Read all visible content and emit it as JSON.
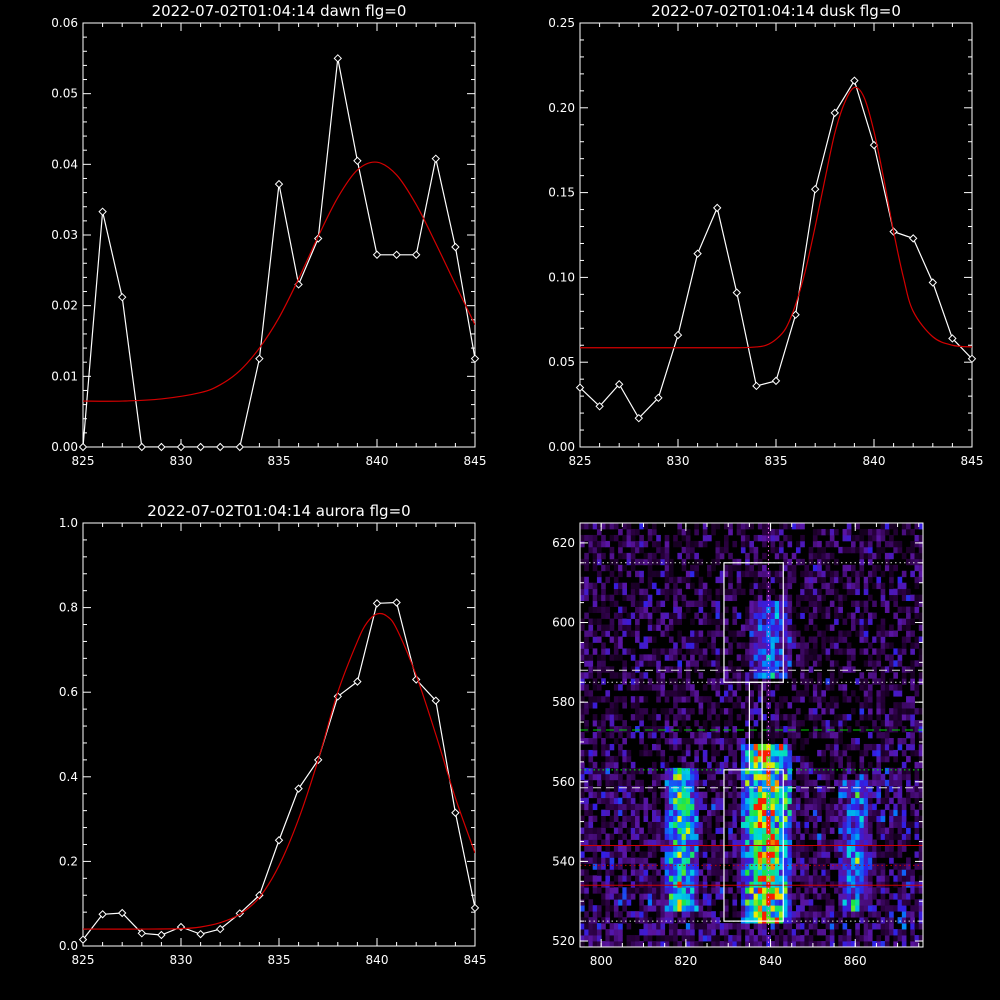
{
  "chart_data": [
    {
      "type": "line",
      "title": "2022-07-02T01:04:14 dawn flg=0",
      "xlim": [
        825,
        845
      ],
      "ylim": [
        0,
        0.06
      ],
      "xticks": [
        "825",
        "830",
        "835",
        "840",
        "845"
      ],
      "yticks": [
        "0.00",
        "0.01",
        "0.02",
        "0.03",
        "0.04",
        "0.05",
        "0.06"
      ],
      "series": [
        {
          "color": "#ffffff",
          "markers": true,
          "x": [
            825,
            826,
            827,
            828,
            829,
            830,
            831,
            832,
            833,
            834,
            835,
            836,
            837,
            838,
            839,
            840,
            841,
            842,
            843,
            844,
            845
          ],
          "y": [
            0.0,
            0.0333,
            0.0212,
            0.0,
            0.0,
            0.0,
            0.0,
            0.0,
            0.0,
            0.0125,
            0.0372,
            0.023,
            0.0295,
            0.055,
            0.0405,
            0.0272,
            0.0272,
            0.0272,
            0.0408,
            0.0283,
            0.0125
          ]
        },
        {
          "color": "#d40000",
          "markers": false,
          "x": [
            825,
            827,
            829,
            831,
            832,
            833,
            834,
            835,
            836,
            837,
            838,
            839,
            840,
            841,
            842,
            843,
            844,
            845
          ],
          "y": [
            0.0065,
            0.0065,
            0.0068,
            0.0077,
            0.0088,
            0.0108,
            0.014,
            0.0183,
            0.0238,
            0.0298,
            0.0353,
            0.0392,
            0.0403,
            0.0385,
            0.0343,
            0.0288,
            0.023,
            0.0173
          ]
        }
      ]
    },
    {
      "type": "line",
      "title": "2022-07-02T01:04:14 dusk flg=0",
      "xlim": [
        825,
        845
      ],
      "ylim": [
        0,
        0.25
      ],
      "xticks": [
        "825",
        "830",
        "835",
        "840",
        "845"
      ],
      "yticks": [
        "0.00",
        "0.05",
        "0.10",
        "0.15",
        "0.20",
        "0.25"
      ],
      "series": [
        {
          "color": "#ffffff",
          "markers": true,
          "x": [
            825,
            826,
            827,
            828,
            829,
            830,
            831,
            832,
            833,
            834,
            835,
            836,
            837,
            838,
            839,
            840,
            841,
            842,
            843,
            844,
            845
          ],
          "y": [
            0.035,
            0.024,
            0.037,
            0.017,
            0.029,
            0.066,
            0.114,
            0.141,
            0.091,
            0.036,
            0.039,
            0.078,
            0.152,
            0.197,
            0.216,
            0.178,
            0.127,
            0.123,
            0.097,
            0.064,
            0.052
          ]
        },
        {
          "color": "#d40000",
          "markers": false,
          "x": [
            825,
            830,
            833,
            834,
            834.5,
            835,
            835.5,
            836,
            836.5,
            837,
            837.5,
            838,
            838.5,
            839,
            839.5,
            840,
            840.5,
            841,
            841.5,
            842,
            843,
            844,
            845
          ],
          "y": [
            0.0585,
            0.0585,
            0.0585,
            0.059,
            0.06,
            0.0635,
            0.07,
            0.084,
            0.104,
            0.13,
            0.158,
            0.185,
            0.203,
            0.212,
            0.206,
            0.186,
            0.158,
            0.127,
            0.1,
            0.08,
            0.065,
            0.06,
            0.059
          ]
        }
      ]
    },
    {
      "type": "line",
      "title": "2022-07-02T01:04:14 aurora flg=0",
      "xlim": [
        825,
        845
      ],
      "ylim": [
        0,
        1.0
      ],
      "xticks": [
        "825",
        "830",
        "835",
        "840",
        "845"
      ],
      "yticks": [
        "0.0",
        "0.2",
        "0.4",
        "0.6",
        "0.8",
        "1.0"
      ],
      "series": [
        {
          "color": "#ffffff",
          "markers": true,
          "x": [
            825,
            826,
            827,
            828,
            829,
            830,
            831,
            832,
            833,
            834,
            835,
            836,
            837,
            838,
            839,
            840,
            841,
            842,
            843,
            844,
            845
          ],
          "y": [
            0.015,
            0.075,
            0.078,
            0.03,
            0.026,
            0.045,
            0.028,
            0.04,
            0.077,
            0.12,
            0.25,
            0.372,
            0.44,
            0.59,
            0.625,
            0.81,
            0.812,
            0.63,
            0.58,
            0.315,
            0.09
          ]
        },
        {
          "color": "#d40000",
          "markers": false,
          "x": [
            825,
            828,
            830,
            831,
            832,
            833,
            834,
            835,
            836,
            837,
            838,
            839,
            839.5,
            840,
            840.5,
            841,
            842,
            843,
            844,
            845
          ],
          "y": [
            0.04,
            0.04,
            0.041,
            0.045,
            0.055,
            0.075,
            0.115,
            0.19,
            0.3,
            0.44,
            0.6,
            0.72,
            0.765,
            0.785,
            0.78,
            0.75,
            0.64,
            0.5,
            0.35,
            0.22
          ]
        }
      ]
    },
    {
      "type": "heatmap",
      "xlim": [
        795,
        876
      ],
      "ylim": [
        518.5,
        625
      ],
      "xticks": [
        "800",
        "820",
        "840",
        "860"
      ],
      "yticks": [
        "520",
        "540",
        "560",
        "580",
        "600",
        "620"
      ],
      "bright_columns": [
        {
          "center": 819,
          "half_width": 3,
          "ymin": 527,
          "ymax": 563,
          "strength": 0.75
        },
        {
          "center": 839,
          "half_width": 5,
          "ymin": 524,
          "ymax": 568,
          "strength": 1.0
        },
        {
          "center": 860,
          "half_width": 3,
          "ymin": 527,
          "ymax": 560,
          "strength": 0.45
        },
        {
          "center": 840,
          "half_width": 4,
          "ymin": 585,
          "ymax": 604,
          "strength": 0.45
        }
      ],
      "boxes": [
        {
          "x0": 829,
          "x1": 843,
          "y0": 585,
          "y1": 615
        },
        {
          "x0": 835,
          "x1": 838,
          "y0": 563,
          "y1": 585
        },
        {
          "x0": 829,
          "x1": 843,
          "y0": 525,
          "y1": 563
        }
      ],
      "hlines": [
        {
          "y": 615,
          "color": "#e0e0e0",
          "style": "dot"
        },
        {
          "y": 588,
          "color": "#e0e0e0",
          "style": "dash"
        },
        {
          "y": 585,
          "color": "#e0e0e0",
          "style": "dot"
        },
        {
          "y": 573,
          "color": "#00d000",
          "style": "dash"
        },
        {
          "y": 563,
          "color": "#00ff00",
          "style": "dot"
        },
        {
          "y": 558.5,
          "color": "#e0e0e0",
          "style": "dash"
        },
        {
          "y": 544,
          "color": "#cc0000",
          "style": "solid"
        },
        {
          "y": 539,
          "color": "#cc0000",
          "style": "dot"
        },
        {
          "y": 534,
          "color": "#cc0000",
          "style": "solid"
        },
        {
          "y": 525,
          "color": "#e0e0e0",
          "style": "dot"
        }
      ],
      "vlines": [
        {
          "x": 839.5,
          "color": "#ff66ff",
          "style": "dot"
        }
      ]
    }
  ]
}
